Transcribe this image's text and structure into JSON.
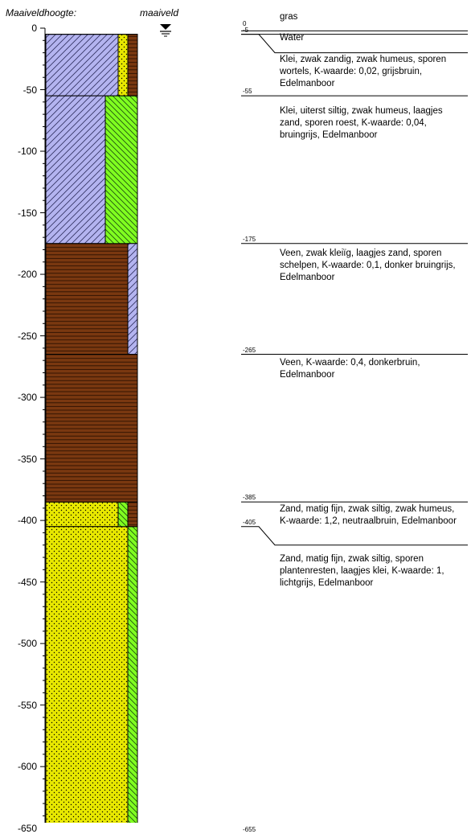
{
  "header": {
    "axis_title": "Maaiveldhoogte:",
    "reference_label": "maaiveld"
  },
  "chart_data": {
    "type": "borehole-log",
    "depth_range": [
      0,
      -655
    ],
    "tick_step": 50,
    "minor_tick_step": 10,
    "tick_labels": [
      "0",
      "-50",
      "-100",
      "-150",
      "-200",
      "-250",
      "-300",
      "-350",
      "-400",
      "-450",
      "-500",
      "-550",
      "-600",
      "-650"
    ],
    "main_column": [
      {
        "top": -5,
        "bottom": -55,
        "soil": "clay",
        "pattern": "diagonal-hatch",
        "color": "#b4b4f0"
      },
      {
        "top": -55,
        "bottom": -175,
        "soil": "clay",
        "pattern": "diagonal-hatch",
        "color": "#b4b4f0"
      },
      {
        "top": -175,
        "bottom": -265,
        "soil": "peat",
        "pattern": "horizontal-lines",
        "color": "#7a3810"
      },
      {
        "top": -265,
        "bottom": -385,
        "soil": "peat",
        "pattern": "horizontal-lines",
        "color": "#7a3810"
      },
      {
        "top": -385,
        "bottom": -405,
        "soil": "sand",
        "pattern": "dots",
        "color": "#e8e800"
      },
      {
        "top": -405,
        "bottom": -655,
        "soil": "sand",
        "pattern": "dots",
        "color": "#e8e800"
      }
    ],
    "admixture_column": [
      {
        "top": -5,
        "bottom": -55,
        "soil": "sand",
        "pattern": "dots",
        "color": "#e8e800"
      },
      {
        "top": -55,
        "bottom": -175,
        "soil": "silt",
        "pattern": "back-diagonal-hatch",
        "color": "#80ff20"
      },
      {
        "top": -175,
        "bottom": -265,
        "soil": "clay",
        "pattern": "diagonal-hatch",
        "color": "#b4b4f0"
      },
      {
        "top": -385,
        "bottom": -405,
        "soil": "silt",
        "pattern": "back-diagonal-hatch",
        "color": "#80ff20"
      },
      {
        "top": -405,
        "bottom": -655,
        "soil": "silt",
        "pattern": "back-diagonal-hatch",
        "color": "#80ff20"
      }
    ],
    "organic_column": [
      {
        "top": -5,
        "bottom": -55
      },
      {
        "top": -385,
        "bottom": -405
      }
    ],
    "markers": [
      {
        "depth": 0,
        "label": "0"
      },
      {
        "depth": -5,
        "label": "-5"
      },
      {
        "depth": -55,
        "label": "-55"
      },
      {
        "depth": -175,
        "label": "-175"
      },
      {
        "depth": -265,
        "label": "-265"
      },
      {
        "depth": -385,
        "label": "-385"
      },
      {
        "depth": -405,
        "label": "-405"
      },
      {
        "depth": -655,
        "label": "-655"
      }
    ]
  },
  "descriptions": [
    {
      "depth": 0,
      "text": "gras"
    },
    {
      "depth": -5,
      "text": "Water"
    },
    {
      "depth": -5,
      "text": "Klei, zwak zandig, zwak humeus, sporen wortels, K-waarde: 0,02, grijsbruin,  Edelmanboor"
    },
    {
      "depth": -55,
      "text": "Klei, uiterst siltig, zwak humeus, laagjes zand, sporen roest, K-waarde: 0,04, bruingrijs, Edelmanboor"
    },
    {
      "depth": -175,
      "text": "Veen, zwak kleiïg, laagjes zand, sporen schelpen, K-waarde: 0,1, donker bruingrijs, Edelmanboor"
    },
    {
      "depth": -265,
      "text": "Veen, K-waarde: 0,4, donkerbruin, Edelmanboor"
    },
    {
      "depth": -385,
      "text": "Zand, matig fijn, zwak siltig, zwak humeus, K-waarde: 1,2, neutraalbruin,  Edelmanboor"
    },
    {
      "depth": -405,
      "text": "Zand, matig fijn, zwak siltig, sporen plantenresten, laagjes klei, K-waarde: 1, lichtgrijs, Edelmanboor"
    }
  ]
}
